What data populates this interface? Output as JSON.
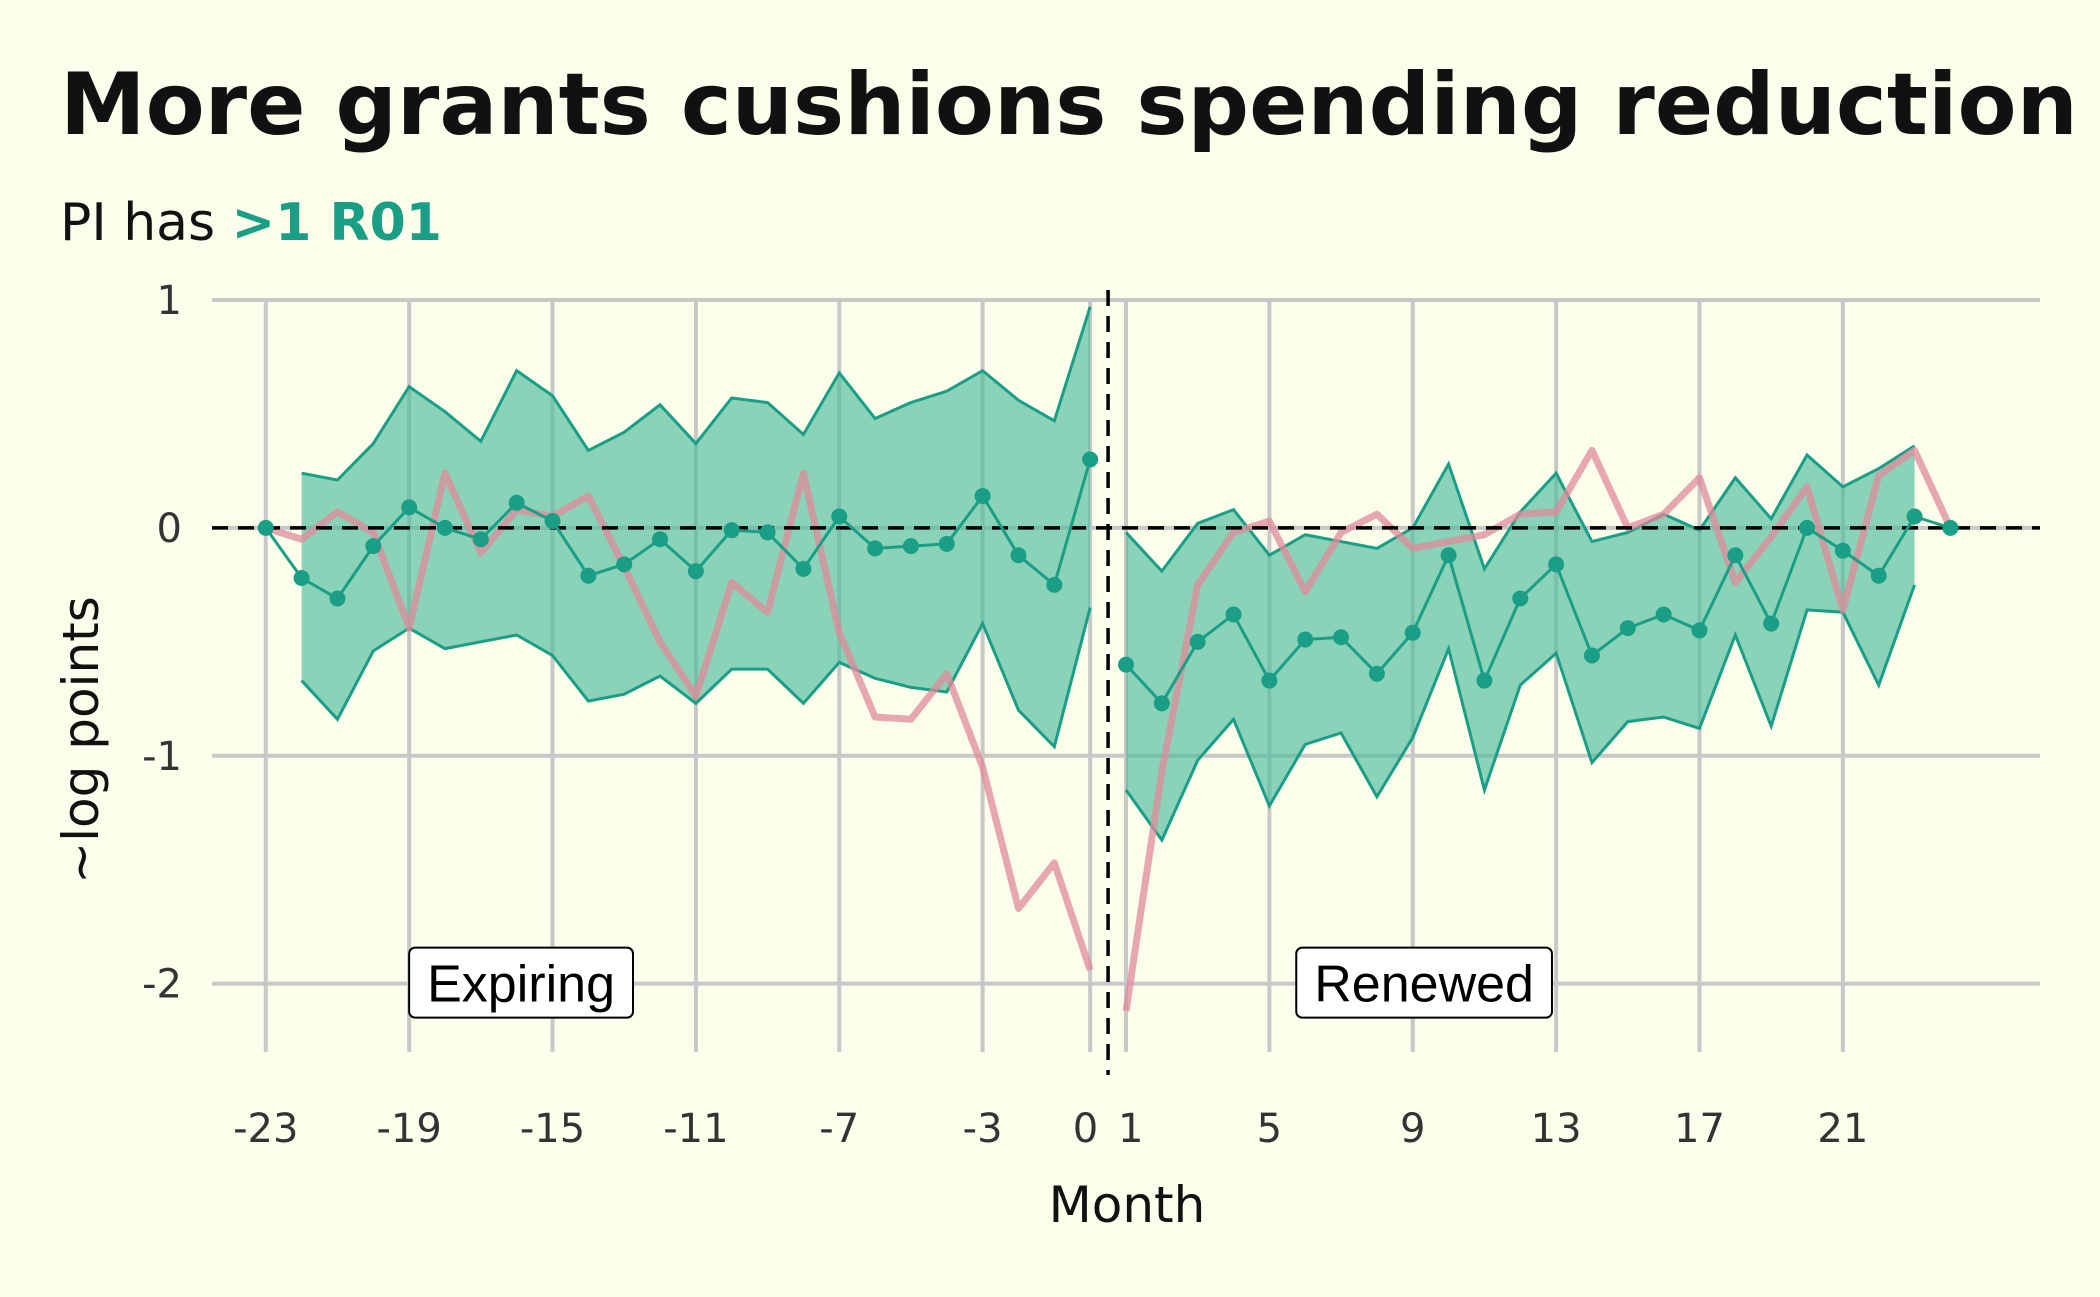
{
  "colors": {
    "background": "#fcfeec",
    "accent": "#1b9e86",
    "ribbon": "#4dbb9c",
    "comparison_line": "#e0899b",
    "grid": "#c8c8c8"
  },
  "chart_data": {
    "type": "line",
    "title": "More grants cushions spending reduction",
    "subtitle": {
      "prefix": "PI has ",
      "highlight": ">1 R01"
    },
    "xlabel": "Month",
    "ylabel": "~log points",
    "xlim": [
      -24.5,
      26.5
    ],
    "ylim": [
      -2.3,
      1.0
    ],
    "x_ticks": [
      -23,
      -19,
      -15,
      -11,
      -7,
      -3,
      0,
      1,
      5,
      9,
      13,
      17,
      21
    ],
    "y_ticks": [
      1,
      0,
      -1,
      -2
    ],
    "y_tick_labels": [
      "1",
      "0",
      "-1",
      "-2"
    ],
    "grid": true,
    "reference_lines": {
      "horizontal_y": 0,
      "vertical_x": 0.5
    },
    "annotations": [
      {
        "text": "Expiring",
        "x": -19,
        "y": -2
      },
      {
        "text": "Renewed",
        "x": 5.75,
        "y": -2
      }
    ],
    "series": [
      {
        "role": "estimate_with_ci",
        "segments": [
          {
            "x": [
              -23,
              -22,
              -21,
              -20,
              -19,
              -18,
              -17,
              -16,
              -15,
              -14,
              -13,
              -12,
              -11,
              -10,
              -9,
              -8,
              -7,
              -6,
              -5,
              -4,
              -3,
              -2,
              -1,
              0
            ],
            "estimate": [
              0,
              -0.22,
              -0.31,
              -0.08,
              0.09,
              0.0,
              -0.05,
              0.11,
              0.03,
              -0.21,
              -0.16,
              -0.05,
              -0.19,
              -0.01,
              -0.02,
              -0.18,
              0.05,
              -0.09,
              -0.08,
              -0.07,
              0.14,
              -0.12,
              -0.25,
              0.3
            ],
            "lower": [
              null,
              -0.67,
              -0.84,
              -0.54,
              -0.44,
              -0.53,
              -0.5,
              -0.47,
              -0.56,
              -0.76,
              -0.73,
              -0.65,
              -0.77,
              -0.62,
              -0.62,
              -0.77,
              -0.59,
              -0.66,
              -0.7,
              -0.72,
              -0.42,
              -0.8,
              -0.96,
              -0.35
            ],
            "upper": [
              null,
              0.24,
              0.21,
              0.37,
              0.62,
              0.51,
              0.38,
              0.69,
              0.58,
              0.34,
              0.42,
              0.54,
              0.37,
              0.57,
              0.55,
              0.41,
              0.68,
              0.48,
              0.55,
              0.6,
              0.69,
              0.56,
              0.47,
              0.97
            ]
          },
          {
            "x": [
              1,
              2,
              3,
              4,
              5,
              6,
              7,
              8,
              9,
              10,
              11,
              12,
              13,
              14,
              15,
              16,
              17,
              18,
              19,
              20,
              21,
              22,
              23,
              24
            ],
            "estimate": [
              -0.6,
              -0.77,
              -0.5,
              -0.38,
              -0.67,
              -0.49,
              -0.48,
              -0.64,
              -0.46,
              -0.12,
              -0.67,
              -0.31,
              -0.16,
              -0.56,
              -0.44,
              -0.38,
              -0.45,
              -0.12,
              -0.42,
              0.0,
              -0.1,
              -0.21,
              0.05,
              0.0
            ],
            "lower": [
              -1.15,
              -1.37,
              -1.02,
              -0.84,
              -1.22,
              -0.95,
              -0.9,
              -1.18,
              -0.92,
              -0.53,
              -1.15,
              -0.69,
              -0.55,
              -1.03,
              -0.85,
              -0.83,
              -0.88,
              -0.47,
              -0.87,
              -0.36,
              -0.37,
              -0.69,
              -0.25,
              null
            ],
            "upper": [
              -0.02,
              -0.19,
              0.02,
              0.08,
              -0.12,
              -0.03,
              -0.06,
              -0.09,
              0.0,
              0.28,
              -0.18,
              0.07,
              0.24,
              -0.06,
              -0.02,
              0.06,
              -0.01,
              0.22,
              0.04,
              0.32,
              0.18,
              0.26,
              0.36,
              null
            ]
          }
        ]
      },
      {
        "role": "comparison",
        "segments": [
          {
            "x": [
              -23,
              -22,
              -21,
              -20,
              -19,
              -18,
              -17,
              -16,
              -15,
              -14,
              -13,
              -12,
              -11,
              -10,
              -9,
              -8,
              -7,
              -6,
              -5,
              -4,
              -3,
              -2,
              -1,
              0
            ],
            "values": [
              0,
              -0.05,
              0.07,
              -0.02,
              -0.44,
              0.24,
              -0.11,
              0.08,
              0.05,
              0.14,
              -0.17,
              -0.5,
              -0.74,
              -0.24,
              -0.37,
              0.24,
              -0.46,
              -0.83,
              -0.84,
              -0.64,
              -1.05,
              -1.67,
              -1.47,
              -1.94
            ]
          },
          {
            "x": [
              1,
              2,
              3,
              4,
              5,
              6,
              7,
              8,
              9,
              10,
              11,
              12,
              13,
              14,
              15,
              16,
              17,
              18,
              19,
              20,
              21,
              22,
              23,
              24
            ],
            "values": [
              -2.12,
              -1.07,
              -0.25,
              -0.02,
              0.03,
              -0.28,
              -0.02,
              0.06,
              -0.09,
              -0.06,
              -0.03,
              0.06,
              0.07,
              0.34,
              0.0,
              0.06,
              0.22,
              -0.24,
              -0.04,
              0.18,
              -0.36,
              0.23,
              0.34,
              0.0
            ]
          }
        ]
      }
    ]
  }
}
